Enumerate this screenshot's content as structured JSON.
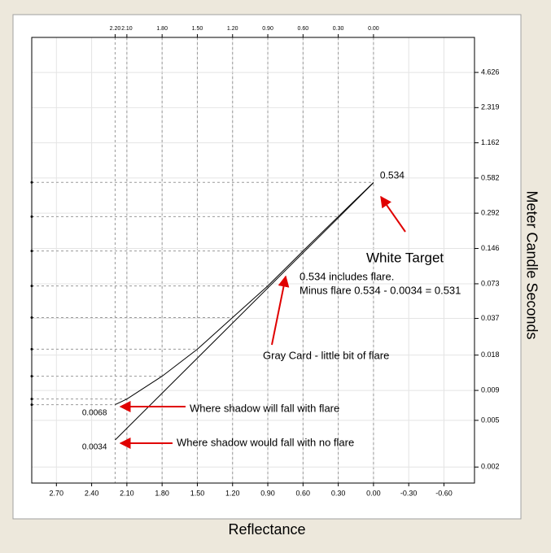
{
  "chart_data": {
    "type": "line",
    "x_label": "Reflectance",
    "y_label": "Meter Candle Seconds",
    "xlim": [
      2.91,
      -0.86
    ],
    "ylim": [
      0.00146,
      9.2
    ],
    "log_y": true,
    "grid": true,
    "xticks": [
      {
        "value": 2.7,
        "label": "2.70"
      },
      {
        "value": 2.4,
        "label": "2.40"
      },
      {
        "value": 2.1,
        "label": "2.10"
      },
      {
        "value": 1.8,
        "label": "1.80"
      },
      {
        "value": 1.5,
        "label": "1.50"
      },
      {
        "value": 1.2,
        "label": "1.20"
      },
      {
        "value": 0.9,
        "label": "0.90"
      },
      {
        "value": 0.6,
        "label": "0.60"
      },
      {
        "value": 0.3,
        "label": "0.30"
      },
      {
        "value": 0,
        "label": "0.00"
      },
      {
        "value": -0.3,
        "label": "-0.30"
      },
      {
        "value": -0.6,
        "label": "-0.60"
      }
    ],
    "x2ticks": [
      {
        "value": 2.2,
        "label": "2.20"
      },
      {
        "value": 2.1,
        "label": "2.10"
      },
      {
        "value": 1.8,
        "label": "1.80"
      },
      {
        "value": 1.5,
        "label": "1.50"
      },
      {
        "value": 1.2,
        "label": "1.20"
      },
      {
        "value": 0.9,
        "label": "0.90"
      },
      {
        "value": 0.6,
        "label": "0.60"
      },
      {
        "value": 0.3,
        "label": "0.30"
      },
      {
        "value": 0,
        "label": "0.00"
      }
    ],
    "yticks": [
      4.626,
      2.319,
      1.162,
      0.582,
      0.292,
      0.146,
      0.073,
      0.037,
      0.018,
      0.009,
      0.005,
      0.002
    ],
    "series": [
      {
        "color": "#000000",
        "x": [
          2.2,
          2.1,
          1.8,
          1.5,
          1.2,
          0.9,
          0.6,
          0.3,
          0.0
        ],
        "values": [
          0.0068,
          0.0076,
          0.0119,
          0.0202,
          0.0376,
          0.07,
          0.139,
          0.273,
          0.534
        ]
      },
      {
        "color": "#000000",
        "x": [
          2.2,
          0.0
        ],
        "values": [
          0.0034,
          0.531
        ]
      }
    ],
    "annotations": [
      "White Target",
      "0.534 includes flare.",
      "Minus flare 0.534 - 0.0034 = 0.531",
      "Gray Card - little bit of flare",
      "Where shadow will fall with flare",
      "Where shadow would fall with no flare"
    ]
  }
}
